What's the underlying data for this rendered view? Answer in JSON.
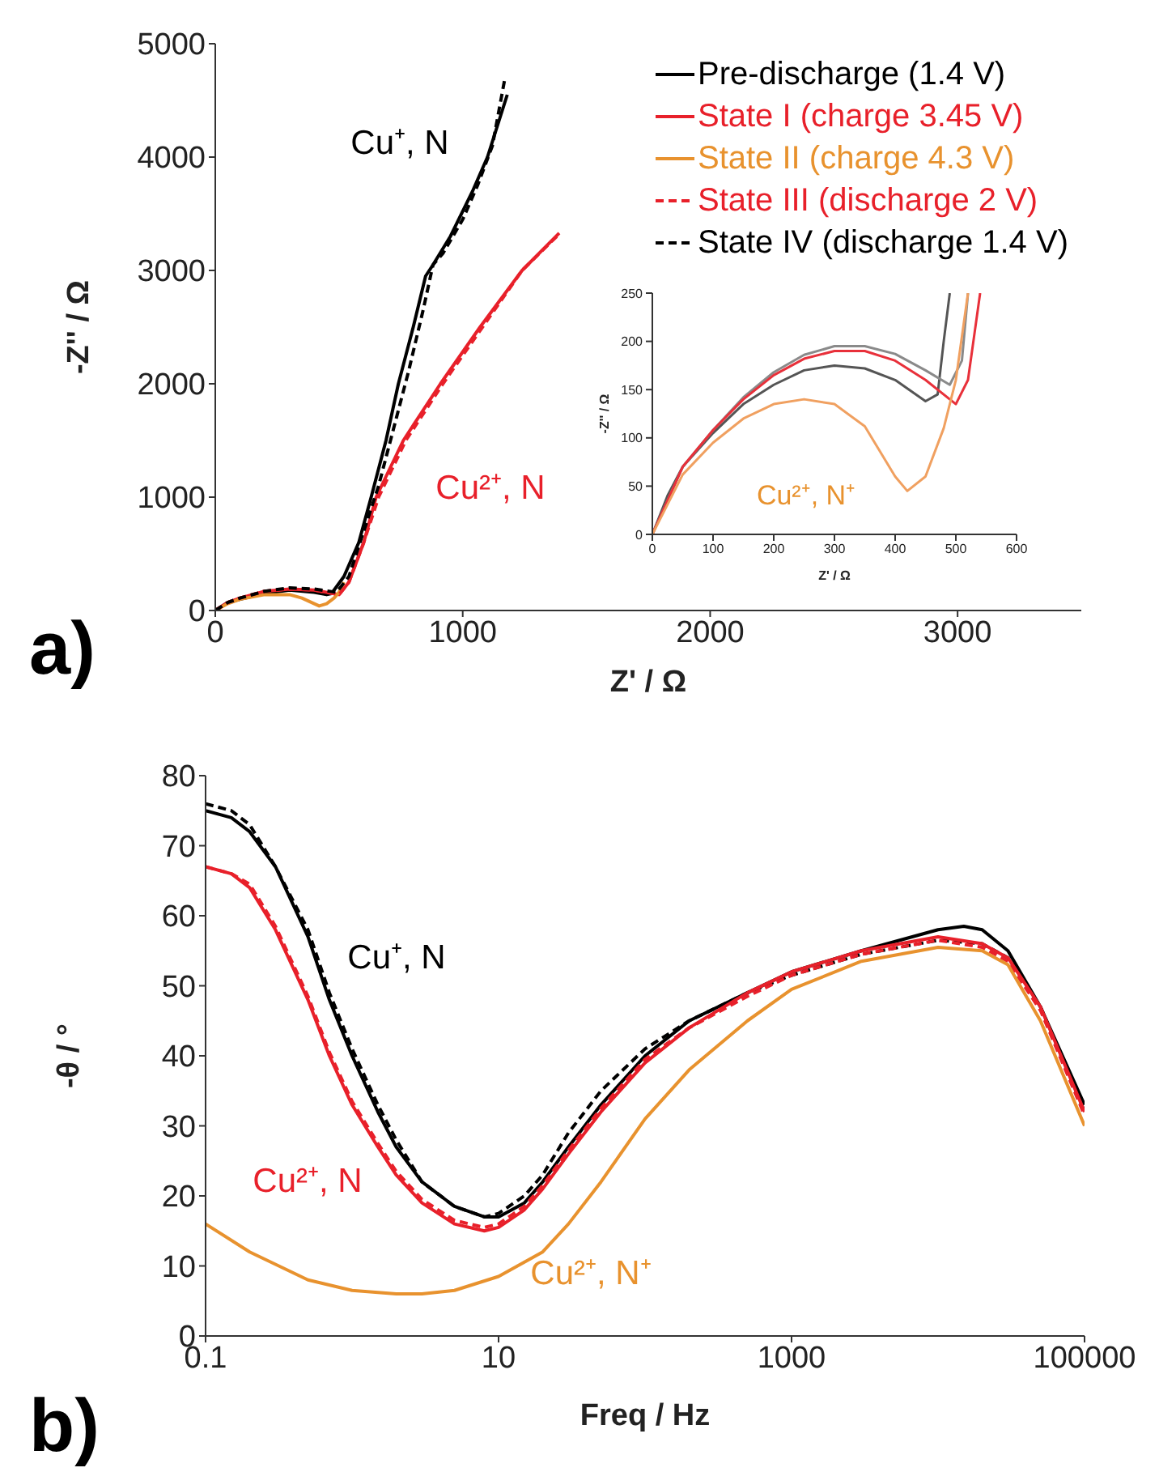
{
  "chart_data": [
    {
      "type": "line",
      "xlabel": "Z' / Ω",
      "ylabel": "-Z'' / Ω",
      "xlim": [
        0,
        3500
      ],
      "xticks": [
        0,
        1000,
        2000,
        3000
      ],
      "ylim": [
        0,
        5000
      ],
      "yticks": [
        0,
        1000,
        2000,
        3000,
        4000,
        5000
      ],
      "legend": "top right",
      "marker": "none",
      "line_style": "solid",
      "annotations": [
        "a)",
        "Cu⁺, N",
        "Cu²⁺, N"
      ],
      "series": [
        {
          "name": "Pre-discharge (1.4 V)",
          "color": "#000000",
          "x": [
            0,
            50,
            100,
            200,
            300,
            400,
            450,
            470,
            520,
            580,
            630,
            690,
            740,
            800,
            850,
            880,
            950,
            1040,
            1100,
            1180
          ],
          "values": [
            0,
            70,
            100,
            150,
            180,
            160,
            140,
            150,
            300,
            600,
            1000,
            1500,
            2000,
            2500,
            2950,
            3050,
            3300,
            3700,
            4000,
            4550
          ]
        },
        {
          "name": "State I (charge 3.45 V)",
          "color": "#e8202a",
          "x": [
            0,
            50,
            100,
            200,
            300,
            400,
            500,
            540,
            600,
            650,
            760,
            910,
            1070,
            1240,
            1390
          ],
          "values": [
            0,
            70,
            110,
            170,
            190,
            180,
            140,
            250,
            600,
            1000,
            1500,
            2000,
            2500,
            3000,
            3330
          ]
        },
        {
          "name": "State II (charge 4.3 V)",
          "color": "#e8922e",
          "x": [
            0,
            50,
            100,
            200,
            250,
            300,
            350,
            400,
            420,
            450,
            480,
            500,
            520
          ],
          "values": [
            0,
            60,
            100,
            140,
            140,
            140,
            110,
            60,
            40,
            60,
            110,
            160,
            250
          ]
        },
        {
          "name": "State III (discharge 2 V)",
          "color": "#e8202a",
          "line_style": "dashed",
          "x": [
            0,
            50,
            100,
            200,
            300,
            400,
            500,
            540,
            600,
            660,
            770,
            920,
            1080,
            1240,
            1380
          ],
          "values": [
            0,
            70,
            110,
            170,
            190,
            180,
            140,
            250,
            600,
            1000,
            1500,
            2000,
            2500,
            3000,
            3300
          ]
        },
        {
          "name": "State IV (discharge 1.4 V)",
          "color": "#000000",
          "line_style": "dashed",
          "x": [
            0,
            50,
            100,
            200,
            300,
            400,
            490,
            540,
            600,
            660,
            720,
            780,
            840,
            880,
            920,
            1000,
            1060,
            1120,
            1170
          ],
          "values": [
            0,
            70,
            110,
            170,
            200,
            190,
            160,
            300,
            700,
            1100,
            1600,
            2100,
            2650,
            3050,
            3150,
            3450,
            3750,
            4100,
            4690
          ]
        }
      ]
    },
    {
      "type": "line",
      "xlabel": "Z' / Ω",
      "ylabel": "-Z'' / Ω",
      "xlim": [
        0,
        600
      ],
      "xticks": [
        0,
        100,
        200,
        300,
        400,
        500,
        600
      ],
      "ylim": [
        0,
        250
      ],
      "yticks": [
        0,
        50,
        100,
        150,
        200,
        250
      ],
      "marker": "none",
      "line_style": "solid",
      "annotations": [
        "Cu²⁺, N⁺"
      ],
      "series": [
        {
          "color": "#555555",
          "x": [
            0,
            25,
            50,
            100,
            150,
            200,
            250,
            300,
            350,
            400,
            450,
            470,
            480,
            490
          ],
          "values": [
            0,
            40,
            70,
            105,
            135,
            155,
            170,
            175,
            172,
            160,
            138,
            145,
            200,
            250
          ]
        },
        {
          "color": "#8a8a8a",
          "x": [
            0,
            50,
            100,
            150,
            200,
            250,
            300,
            350,
            400,
            450,
            490,
            510,
            520
          ],
          "values": [
            0,
            70,
            108,
            142,
            168,
            186,
            195,
            195,
            187,
            170,
            155,
            180,
            250
          ]
        },
        {
          "color": "#e8303a",
          "x": [
            0,
            50,
            100,
            150,
            200,
            250,
            300,
            350,
            400,
            450,
            500,
            520,
            540
          ],
          "values": [
            0,
            70,
            108,
            140,
            165,
            182,
            190,
            190,
            180,
            160,
            135,
            160,
            250
          ]
        },
        {
          "color": "#f0a060",
          "x": [
            0,
            50,
            100,
            150,
            200,
            250,
            300,
            350,
            400,
            420,
            450,
            480,
            500,
            520
          ],
          "values": [
            0,
            62,
            95,
            120,
            135,
            140,
            135,
            112,
            60,
            45,
            60,
            110,
            160,
            250
          ]
        }
      ]
    },
    {
      "type": "line",
      "xlabel": "Freq / Hz",
      "ylabel": "-θ / °",
      "log": "x",
      "xlim": [
        0.1,
        100000
      ],
      "xticks": [
        0.1,
        10,
        1000,
        100000
      ],
      "ylim": [
        0,
        80
      ],
      "yticks": [
        0,
        10,
        20,
        30,
        40,
        50,
        60,
        70,
        80
      ],
      "marker": "none",
      "line_style": "solid",
      "annotations": [
        "b)",
        "Cu⁺, N",
        "Cu²⁺, N",
        "Cu²⁺, N⁺"
      ],
      "series": [
        {
          "color": "#000000",
          "x": [
            0.1,
            0.15,
            0.2,
            0.3,
            0.5,
            0.7,
            1,
            1.5,
            2,
            3,
            5,
            8,
            10,
            15,
            20,
            30,
            50,
            100,
            200,
            500,
            1000,
            3000,
            10000,
            15000,
            20000,
            30000,
            50000,
            100000
          ],
          "values": [
            75,
            74,
            72,
            67,
            57,
            48,
            40,
            32,
            27,
            22,
            18.5,
            17,
            17,
            19,
            22,
            27,
            33,
            40,
            45,
            49,
            52,
            55,
            58,
            58.5,
            58,
            55,
            47,
            33
          ]
        },
        {
          "color": "#000000",
          "line_style": "dashed",
          "x": [
            0.1,
            0.15,
            0.2,
            0.3,
            0.5,
            0.7,
            1,
            1.5,
            2,
            3,
            5,
            8,
            10,
            15,
            20,
            30,
            50,
            100,
            200,
            500,
            1000,
            3000,
            10000,
            20000,
            30000,
            50000,
            100000
          ],
          "values": [
            76,
            75,
            73,
            67,
            58,
            49,
            41,
            33,
            28,
            22,
            18.5,
            17,
            17.5,
            20,
            23,
            29,
            35,
            41,
            45,
            49,
            51.5,
            54.5,
            56.5,
            56,
            54,
            47,
            32
          ]
        },
        {
          "color": "#e8202a",
          "x": [
            0.1,
            0.15,
            0.2,
            0.3,
            0.5,
            0.7,
            1,
            1.5,
            2,
            3,
            5,
            8,
            10,
            15,
            20,
            30,
            50,
            100,
            200,
            500,
            1000,
            3000,
            10000,
            20000,
            30000,
            50000,
            100000
          ],
          "values": [
            67,
            66,
            64,
            58,
            48,
            40,
            33,
            27,
            23,
            19,
            16,
            15,
            15.5,
            18,
            21,
            26,
            32,
            39,
            44,
            49,
            52,
            55,
            57,
            56,
            54,
            47,
            32
          ]
        },
        {
          "color": "#e8202a",
          "line_style": "dashed",
          "x": [
            0.1,
            0.15,
            0.2,
            0.3,
            0.5,
            0.7,
            1,
            1.5,
            2,
            3,
            5,
            8,
            10,
            15,
            20,
            30,
            50,
            100,
            200,
            500,
            1000,
            3000,
            10000,
            20000,
            30000,
            50000,
            100000
          ],
          "values": [
            67,
            66,
            64.5,
            58.5,
            48.5,
            40.5,
            33.5,
            27.5,
            23.5,
            19.5,
            16.5,
            15.5,
            16,
            18.5,
            21.5,
            26.5,
            32.5,
            39.5,
            44,
            48.5,
            51.5,
            54.5,
            56.5,
            55.5,
            53.5,
            46.5,
            31.5
          ]
        },
        {
          "color": "#e8922e",
          "x": [
            0.1,
            0.2,
            0.5,
            1,
            2,
            3,
            5,
            10,
            20,
            30,
            50,
            100,
            200,
            500,
            1000,
            3000,
            10000,
            20000,
            30000,
            50000,
            100000
          ],
          "values": [
            16,
            12,
            8,
            6.5,
            6,
            6,
            6.5,
            8.5,
            12,
            16,
            22,
            31,
            38,
            45,
            49.5,
            53.5,
            55.5,
            55,
            53,
            45,
            30
          ]
        }
      ]
    }
  ]
}
